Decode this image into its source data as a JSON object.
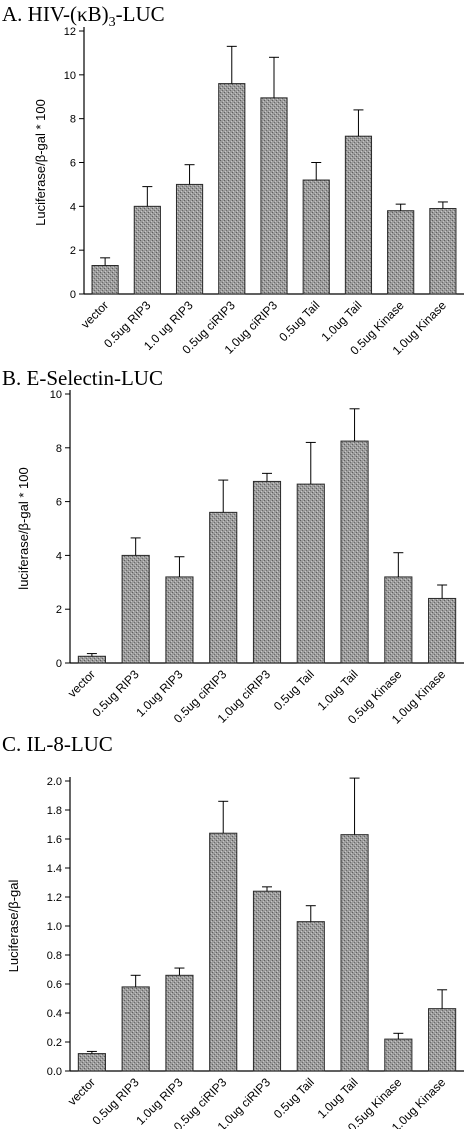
{
  "chart_data": [
    {
      "type": "bar",
      "title": "A. HIV-(κB)",
      "title_subscript": "3",
      "title_suffix": "-LUC",
      "ylabel": "Luciferase/β-gal * 100",
      "ylim": [
        0,
        12
      ],
      "yticks": [
        "0",
        "2",
        "4",
        "6",
        "8",
        "10",
        "12"
      ],
      "categories": [
        "vector",
        "0.5ug RIP3",
        "1.0 ug RIP3",
        "0.5ug ciRIP3",
        "1.0ug ciRIP3",
        "0.5ug Tail",
        "1.0ug Tail",
        "0.5ug Kinase",
        "1.0ug Kinase"
      ],
      "values": [
        1.3,
        4.0,
        5.0,
        9.6,
        8.95,
        5.2,
        7.2,
        3.8,
        3.9
      ],
      "errors": [
        0.35,
        0.9,
        0.9,
        1.7,
        1.85,
        0.8,
        1.2,
        0.3,
        0.3
      ],
      "grid": false
    },
    {
      "type": "bar",
      "title": "B. E-Selectin-LUC",
      "ylabel": "luciferase/β-gal * 100",
      "ylim": [
        0,
        10
      ],
      "yticks": [
        "0",
        "2",
        "4",
        "6",
        "8",
        "10"
      ],
      "categories": [
        "vector",
        "0.5ug RIP3",
        "1.0ug RIP3",
        "0.5ug ciRIP3",
        "1.0ug ciRIP3",
        "0.5ug Tail",
        "1.0ug Tail",
        "0.5ug Kinase",
        "1.0ug Kinase"
      ],
      "values": [
        0.25,
        4.0,
        3.2,
        5.6,
        6.75,
        6.65,
        8.25,
        3.2,
        2.4
      ],
      "errors": [
        0.1,
        0.65,
        0.75,
        1.2,
        0.3,
        1.55,
        1.2,
        0.9,
        0.5
      ],
      "grid": false
    },
    {
      "type": "bar",
      "title": "C.  IL-8-LUC",
      "ylabel": "Luciferase/β-gal",
      "ylim": [
        0,
        2.0
      ],
      "yticks": [
        "0.0",
        "0.2",
        "0.4",
        "0.6",
        "0.8",
        "1.0",
        "1.2",
        "1.4",
        "1.6",
        "1.8",
        "2.0"
      ],
      "categories": [
        "vector",
        "0.5ug RIP3",
        "1.0ug RIP3",
        "0.5ug ciRIP3",
        "1.0ug ciRIP3",
        "0.5ug Tail",
        "1.0ug Tail",
        "0.5ug Kinase",
        "1.0ug Kinase"
      ],
      "values": [
        0.12,
        0.58,
        0.66,
        1.64,
        1.24,
        1.03,
        1.63,
        0.22,
        0.43
      ],
      "errors": [
        0.015,
        0.08,
        0.05,
        0.22,
        0.03,
        0.11,
        0.39,
        0.04,
        0.13
      ],
      "grid": false
    }
  ]
}
